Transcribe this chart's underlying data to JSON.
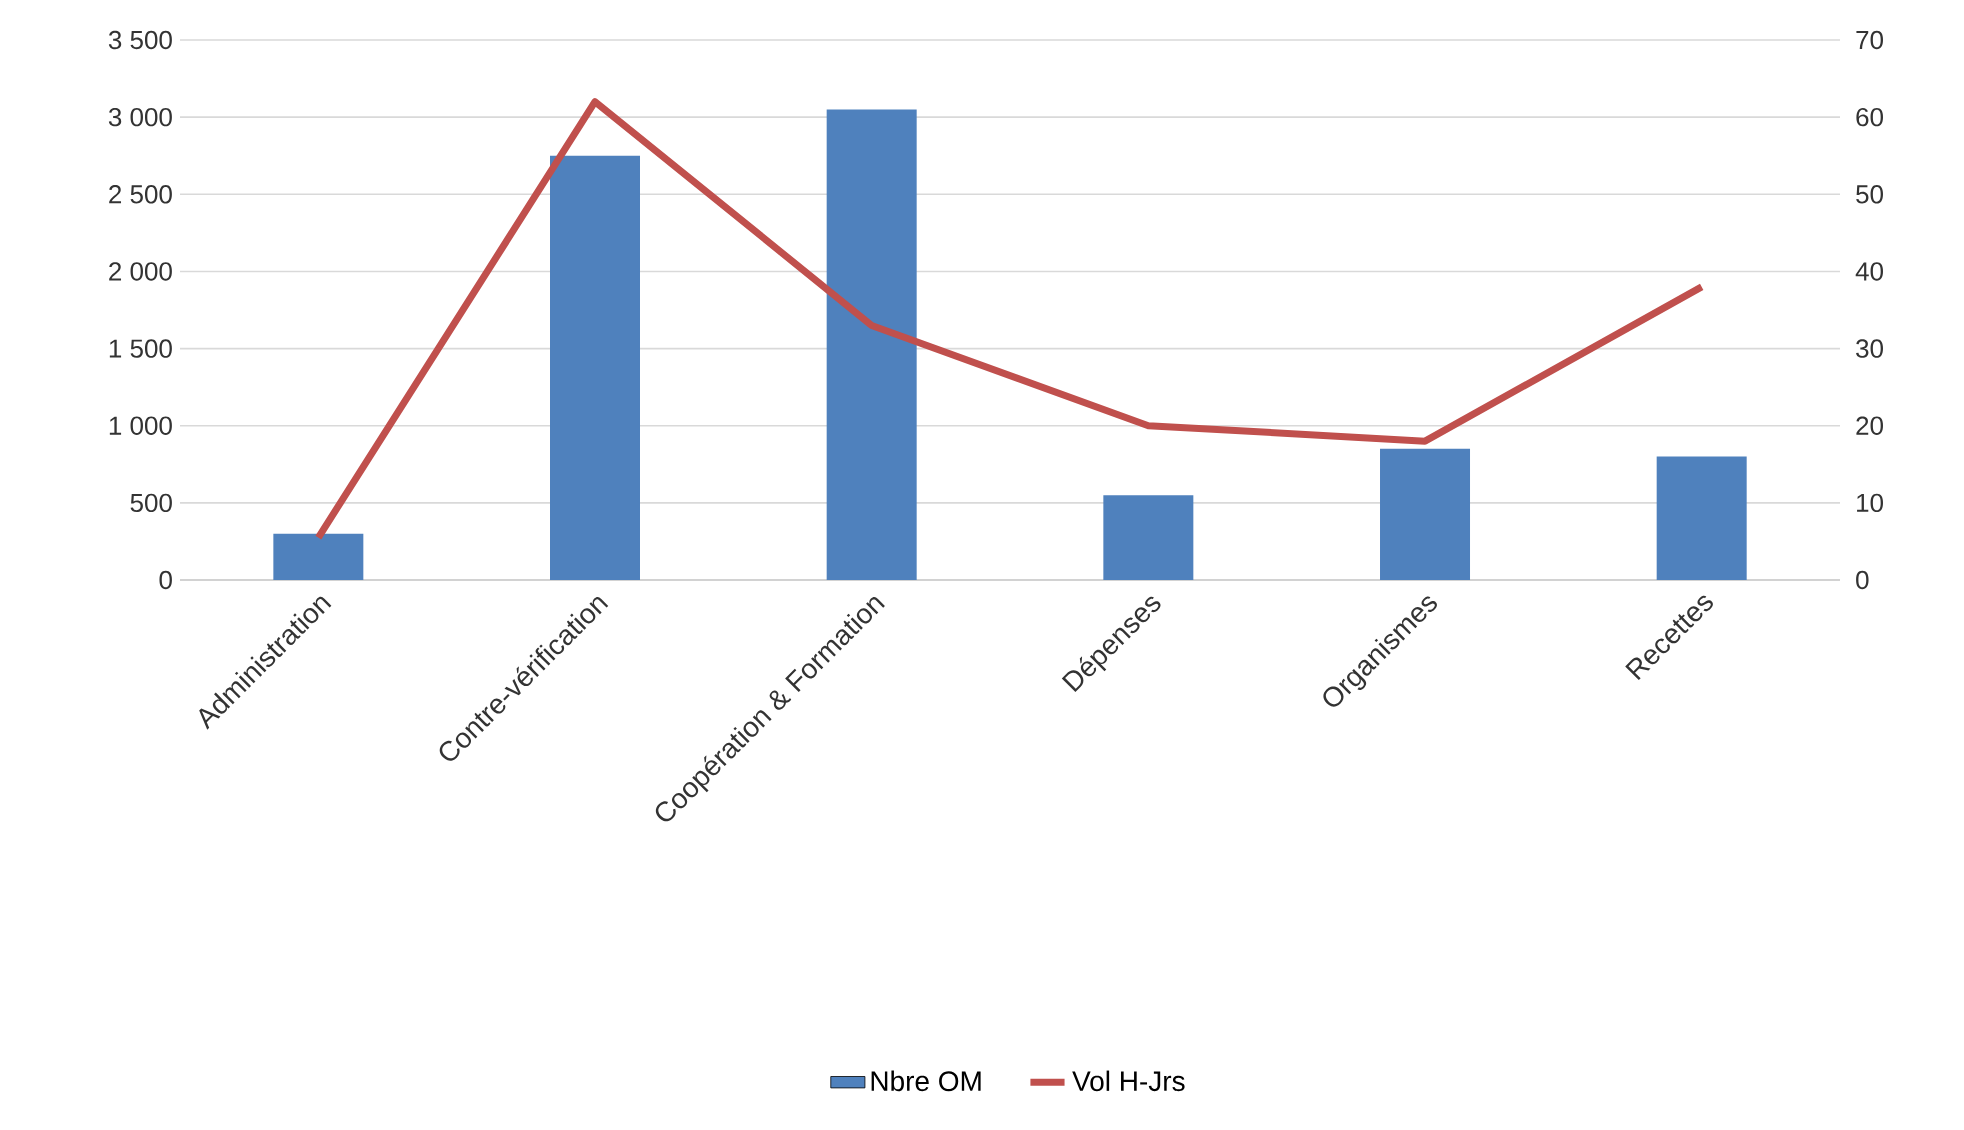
{
  "chart_data": {
    "type": "bar",
    "categories": [
      "Administration",
      "Contre-vérification",
      "Coopération & Formation",
      "Dépenses",
      "Organismes",
      "Recettes"
    ],
    "series": [
      {
        "name": "Nbre OM",
        "color": "#4f81bd",
        "values": [
          300,
          2750,
          3050,
          550,
          850,
          800
        ]
      },
      {
        "name": "Vol H-Jrs",
        "color": "#c0504d",
        "type": "line",
        "axis": "y2",
        "values": [
          5.5,
          62,
          33,
          20,
          18,
          38
        ]
      }
    ],
    "ylim": [
      0,
      3500
    ],
    "yticks": [
      0,
      500,
      {
        "value": 1000,
        "label": "1 000"
      },
      {
        "value": 1500,
        "label": "1 500"
      },
      {
        "value": 2000,
        "label": "2 000"
      },
      {
        "value": 2500,
        "label": "2 500"
      },
      {
        "value": 3000,
        "label": "3 000"
      },
      {
        "value": 3500,
        "label": "3 500"
      }
    ],
    "y2lim": [
      0,
      70
    ],
    "y2ticks": [
      0,
      10,
      20,
      30,
      40,
      50,
      60,
      70
    ],
    "grid": "y",
    "legend": "bottom"
  }
}
